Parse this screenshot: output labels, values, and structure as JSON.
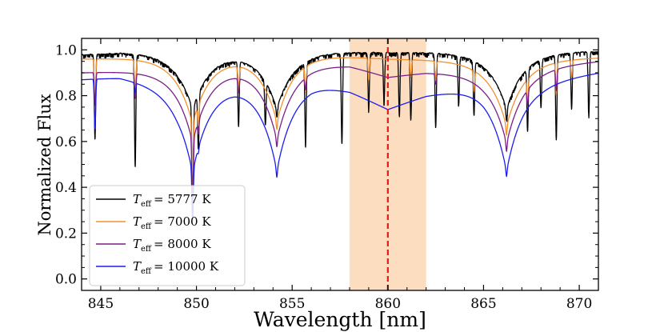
{
  "chart_data": {
    "type": "line",
    "title": "",
    "xlabel": "Wavelength [nm]",
    "ylabel": "Normalized Flux",
    "xlim": [
      844,
      871
    ],
    "ylim": [
      -0.05,
      1.05
    ],
    "xticks": [
      845,
      850,
      855,
      860,
      865,
      870
    ],
    "yticks": [
      0.0,
      0.2,
      0.4,
      0.6,
      0.8,
      1.0
    ],
    "shaded_region": {
      "x0": 858,
      "x1": 862,
      "color": "#fbd7b4"
    },
    "vline": {
      "x": 860,
      "color": "#e31a1c",
      "style": "dashed"
    },
    "legend_position": "lower-left",
    "series": [
      {
        "name": "T_eff = 5777 K",
        "legend_symbol": "T",
        "legend_sub": "eff",
        "legend_value": "= 5777 K",
        "color": "#000000",
        "continuum": [
          [
            844,
            0.98
          ],
          [
            846,
            0.99
          ],
          [
            850,
            0.99
          ],
          [
            855,
            0.995
          ],
          [
            860,
            0.99
          ],
          [
            865,
            0.99
          ],
          [
            871,
            0.995
          ]
        ],
        "wings": 0.25,
        "comb": 0.02,
        "lines": [
          [
            849.8,
            0.6
          ],
          [
            854.2,
            0.05
          ],
          [
            866.2,
            0.07
          ],
          [
            844.7,
            0.38
          ],
          [
            846.8,
            0.5
          ],
          [
            850.1,
            0.3
          ],
          [
            852.2,
            0.3
          ],
          [
            853.6,
            0.22
          ],
          [
            855.7,
            0.38
          ],
          [
            857.6,
            0.4
          ],
          [
            859.0,
            0.25
          ],
          [
            859.8,
            0.22
          ],
          [
            860.6,
            0.28
          ],
          [
            861.2,
            0.3
          ],
          [
            862.5,
            0.33
          ],
          [
            863.7,
            0.22
          ],
          [
            864.5,
            0.25
          ],
          [
            867.3,
            0.3
          ],
          [
            868.0,
            0.22
          ],
          [
            868.8,
            0.38
          ],
          [
            869.6,
            0.25
          ],
          [
            870.5,
            0.28
          ]
        ]
      },
      {
        "name": "T_eff = 7000 K",
        "legend_symbol": "T",
        "legend_sub": "eff",
        "legend_value": "= 7000 K",
        "color": "#f4902f",
        "continuum": [
          [
            844,
            0.96
          ],
          [
            850,
            0.97
          ],
          [
            855,
            0.985
          ],
          [
            860,
            0.96
          ],
          [
            865,
            0.95
          ],
          [
            871,
            0.965
          ]
        ],
        "wings": 0.3,
        "comb": 0.0,
        "lines": [
          [
            849.8,
            0.56
          ],
          [
            854.2,
            0.05
          ],
          [
            866.2,
            0.06
          ],
          [
            844.7,
            0.22
          ],
          [
            846.8,
            0.16
          ],
          [
            850.1,
            0.12
          ],
          [
            852.2,
            0.1
          ],
          [
            855.7,
            0.12
          ],
          [
            859.0,
            0.1
          ],
          [
            861.2,
            0.08
          ],
          [
            862.5,
            0.08
          ],
          [
            864.5,
            0.1
          ],
          [
            867.3,
            0.12
          ],
          [
            868.8,
            0.15
          ],
          [
            869.6,
            0.08
          ]
        ]
      },
      {
        "name": "T_eff = 8000 K",
        "legend_symbol": "T",
        "legend_sub": "eff",
        "legend_value": "= 8000 K",
        "color": "#7b1f86",
        "continuum": [
          [
            844,
            0.9
          ],
          [
            848,
            0.91
          ],
          [
            852,
            0.93
          ],
          [
            856,
            0.94
          ],
          [
            858,
            0.93
          ],
          [
            860,
            0.88
          ],
          [
            862,
            0.9
          ],
          [
            865,
            0.9
          ],
          [
            871,
            0.95
          ]
        ],
        "wings": 0.35,
        "comb": 0.0,
        "lines": [
          [
            849.8,
            0.53
          ],
          [
            854.2,
            0.05
          ],
          [
            866.2,
            0.06
          ],
          [
            844.7,
            0.16
          ],
          [
            846.8,
            0.12
          ],
          [
            850.1,
            0.08
          ],
          [
            852.2,
            0.07
          ],
          [
            855.7,
            0.06
          ],
          [
            862.5,
            0.05
          ],
          [
            867.3,
            0.08
          ],
          [
            868.8,
            0.1
          ]
        ]
      },
      {
        "name": "T_eff = 10000 K",
        "legend_symbol": "T",
        "legend_sub": "eff",
        "legend_value": "= 10000 K",
        "color": "#1c1cf0",
        "continuum": [
          [
            844,
            0.87
          ],
          [
            846,
            0.88
          ],
          [
            849,
            0.84
          ],
          [
            852,
            0.86
          ],
          [
            856,
            0.86
          ],
          [
            858,
            0.82
          ],
          [
            860,
            0.74
          ],
          [
            862,
            0.8
          ],
          [
            865,
            0.85
          ],
          [
            868,
            0.86
          ],
          [
            871,
            0.9
          ]
        ],
        "wings": 0.45,
        "comb": 0.0,
        "lines": [
          [
            849.8,
            0.45
          ],
          [
            854.2,
            0.06
          ],
          [
            866.2,
            0.05
          ],
          [
            844.7,
            0.25
          ],
          [
            846.8,
            0.05
          ],
          [
            850.1,
            0.04
          ]
        ]
      }
    ]
  }
}
